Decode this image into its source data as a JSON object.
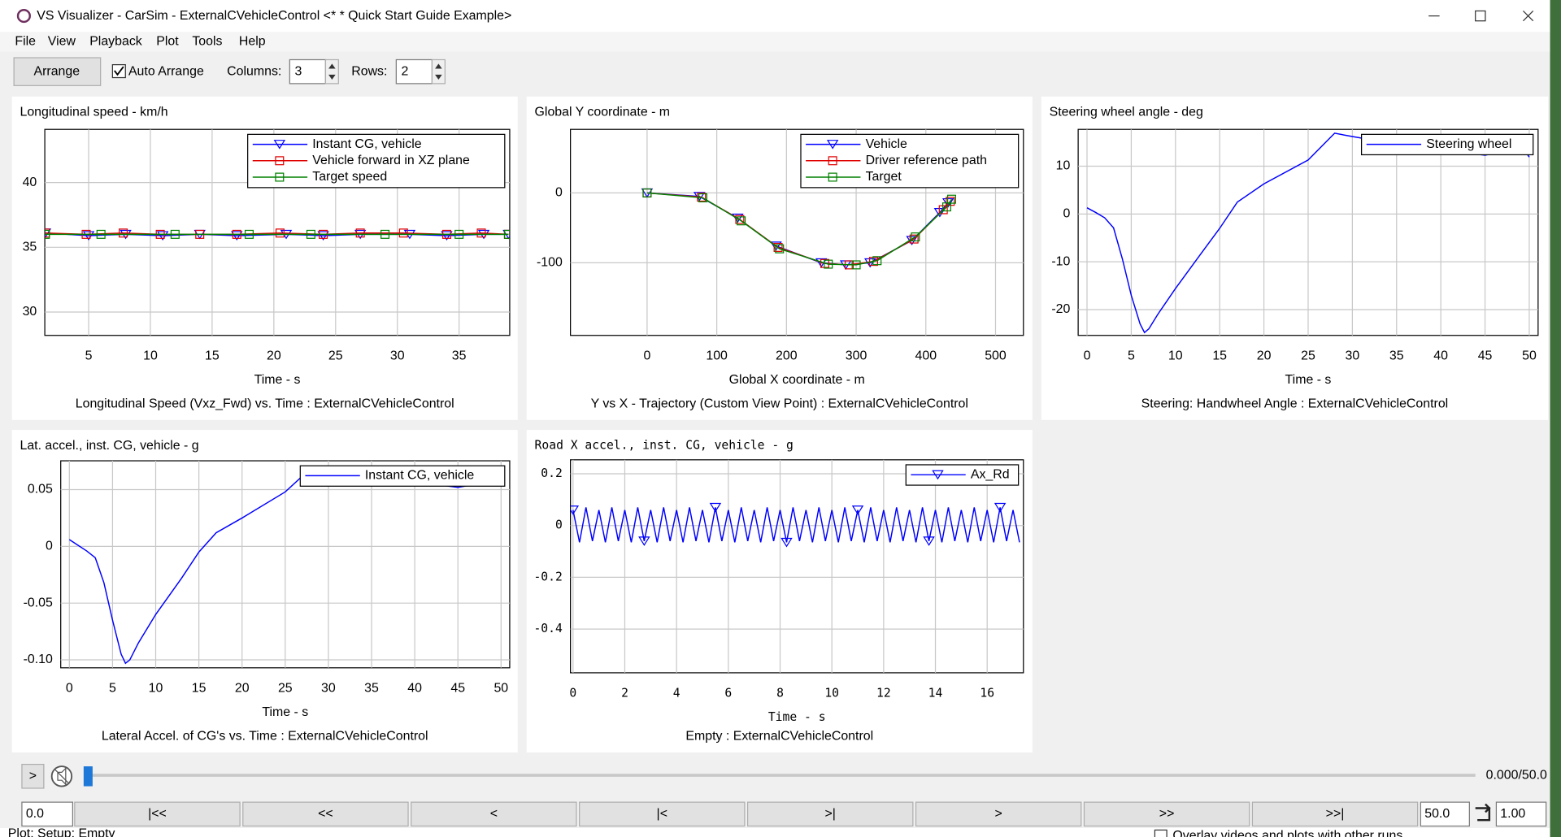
{
  "window": {
    "title": "VS Visualizer - CarSim - ExternalCVehicleControl <* * Quick Start Guide Example>"
  },
  "menu": [
    "File",
    "View",
    "Playback",
    "Plot",
    "Tools",
    "Help"
  ],
  "toolbar": {
    "arrange": "Arrange",
    "auto_arrange": "Auto Arrange",
    "columns_label": "Columns:",
    "columns": 3,
    "rows_label": "Rows:",
    "rows": 2
  },
  "plots": [
    {
      "title": "Longitudinal speed - km/h",
      "xlabel": "Time - s",
      "caption": "Longitudinal Speed (Vxz_Fwd) vs. Time : ExternalCVehicleControl",
      "xlim": [
        1.45,
        39.1
      ],
      "ylim": [
        28.2,
        44.1
      ],
      "xticks": [
        5,
        10,
        15,
        20,
        25,
        30,
        35
      ],
      "yticks": [
        30,
        35,
        40
      ],
      "grid": true,
      "legend": "upper right",
      "series": [
        {
          "name": "Instant CG, vehicle",
          "color": "#0000ff",
          "marker": "triangle",
          "x": [
            1.5,
            5,
            8,
            11,
            14,
            17,
            21,
            24,
            27,
            31,
            34,
            37,
            39
          ],
          "y": [
            36.1,
            35.9,
            36.0,
            35.9,
            36.0,
            35.9,
            36.0,
            35.9,
            36.0,
            36.0,
            35.9,
            36.0,
            36.0
          ]
        },
        {
          "name": "Vehicle forward in XZ plane",
          "color": "#e00000",
          "marker": "square",
          "x": [
            1.5,
            4.8,
            7.8,
            10.8,
            14,
            17,
            20.5,
            24,
            27,
            30.5,
            34,
            36.8,
            39
          ],
          "y": [
            36.1,
            36.0,
            36.1,
            36.0,
            36.0,
            36.0,
            36.1,
            36.0,
            36.1,
            36.1,
            36.0,
            36.1,
            36.0
          ]
        },
        {
          "name": "Target speed",
          "color": "#008000",
          "marker": "square",
          "x": [
            1.5,
            6,
            12,
            18,
            23,
            29,
            35,
            39
          ],
          "y": [
            36.0,
            36.0,
            36.0,
            36.0,
            36.0,
            36.0,
            36.0,
            36.0
          ]
        }
      ]
    },
    {
      "title": "Global Y coordinate - m",
      "xlabel": "Global X coordinate - m",
      "caption": "Y vs X - Trajectory (Custom View Point) : ExternalCVehicleControl",
      "xlim": [
        -110,
        540
      ],
      "ylim": [
        -204,
        91
      ],
      "xticks": [
        0,
        100,
        200,
        300,
        400,
        500
      ],
      "yticks": [
        -100,
        0
      ],
      "grid": true,
      "legend": "upper right",
      "series": [
        {
          "name": "Vehicle",
          "color": "#0000ff",
          "marker": "triangle",
          "x": [
            0,
            75,
            130,
            185,
            250,
            285,
            320,
            380,
            420,
            432
          ],
          "y": [
            0,
            -5,
            -36,
            -76,
            -100,
            -103,
            -100,
            -68,
            -28,
            -14
          ]
        },
        {
          "name": "Driver reference path",
          "color": "#e00000",
          "marker": "square",
          "x": [
            0,
            78,
            133,
            188,
            255,
            290,
            325,
            383,
            425,
            435
          ],
          "y": [
            0,
            -6,
            -38,
            -78,
            -101,
            -103,
            -98,
            -66,
            -24,
            -12
          ]
        },
        {
          "name": "Target",
          "color": "#008000",
          "marker": "square",
          "x": [
            0,
            80,
            135,
            190,
            260,
            300,
            330,
            385,
            430,
            437
          ],
          "y": [
            0,
            -7,
            -40,
            -80,
            -102,
            -103,
            -97,
            -63,
            -20,
            -9
          ]
        }
      ]
    },
    {
      "title": "Steering wheel angle - deg",
      "xlabel": "Time - s",
      "caption": "Steering: Handwheel Angle : ExternalCVehicleControl",
      "xlim": [
        -1,
        51
      ],
      "ylim": [
        -25.4,
        17.7
      ],
      "xticks": [
        0,
        5,
        10,
        15,
        20,
        25,
        30,
        35,
        40,
        45,
        50
      ],
      "yticks": [
        -20,
        -10,
        0,
        10
      ],
      "grid": true,
      "legend": "upper right",
      "series": [
        {
          "name": "Steering wheel",
          "color": "#0000ff",
          "marker": "none",
          "x": [
            0,
            1,
            2,
            3,
            4,
            5,
            6,
            6.5,
            7,
            8,
            10,
            13,
            15,
            17,
            20,
            25,
            28,
            30,
            35,
            40,
            45,
            48,
            49.5,
            50
          ],
          "y": [
            1.3,
            0.3,
            -0.8,
            -2.9,
            -9.4,
            -17,
            -23,
            -24.8,
            -24,
            -21,
            -15.6,
            -8,
            -3,
            2.5,
            6.3,
            11.3,
            16.9,
            16.2,
            14.6,
            13.5,
            12.3,
            13.5,
            13.2,
            11.9
          ]
        }
      ]
    },
    {
      "title": "Lat. accel., inst. CG, vehicle - g",
      "xlabel": "Time - s",
      "caption": "Lateral Accel. of CG's vs. Time : ExternalCVehicleControl",
      "xlim": [
        -1,
        51
      ],
      "ylim": [
        -0.107,
        0.0754
      ],
      "xticks": [
        0,
        5,
        10,
        15,
        20,
        25,
        30,
        35,
        40,
        45,
        50
      ],
      "yticks": [
        {
          "value": -0.1,
          "label": "-0.10"
        },
        -0.05,
        0,
        0.05
      ],
      "grid": true,
      "legend": "upper right",
      "series": [
        {
          "name": "Instant CG, vehicle",
          "color": "#0000ff",
          "marker": "none",
          "x": [
            0,
            1,
            2,
            3,
            4,
            5,
            6,
            6.5,
            7,
            8,
            10,
            13,
            15,
            17,
            20,
            25,
            28,
            30,
            35,
            40,
            45,
            48,
            50
          ],
          "y": [
            0.006,
            0.001,
            -0.004,
            -0.01,
            -0.032,
            -0.065,
            -0.095,
            -0.103,
            -0.1,
            -0.085,
            -0.06,
            -0.028,
            -0.005,
            0.012,
            0.025,
            0.048,
            0.069,
            0.068,
            0.062,
            0.057,
            0.052,
            0.056,
            0.059
          ]
        }
      ]
    },
    {
      "title": "Road X accel., inst. CG, vehicle - g",
      "xlabel": "Time - s",
      "caption": "Empty : ExternalCVehicleControl",
      "xlim": [
        -0.1,
        17.4
      ],
      "ylim": [
        -0.569,
        0.254
      ],
      "xticks": [
        0,
        2,
        4,
        6,
        8,
        10,
        12,
        14,
        16
      ],
      "yticks": [
        -0.4,
        -0.2,
        0,
        0.2
      ],
      "grid": true,
      "legend": "upper right",
      "series": [
        {
          "name": "Ax_Rd",
          "color": "#0000ff",
          "marker": "triangle",
          "x": [
            0,
            0.25,
            0.5,
            0.75,
            1,
            1.25,
            1.5,
            1.75,
            2,
            2.25,
            2.5,
            2.75,
            3,
            3.25,
            3.5,
            3.75,
            4,
            4.25,
            4.5,
            4.75,
            5,
            5.25,
            5.5,
            5.75,
            6,
            6.25,
            6.5,
            6.75,
            7,
            7.25,
            7.5,
            7.75,
            8,
            8.25,
            8.5,
            8.75,
            9,
            9.25,
            9.5,
            9.75,
            10,
            10.25,
            10.5,
            10.75,
            11,
            11.25,
            11.5,
            11.75,
            12,
            12.25,
            12.5,
            12.75,
            13,
            13.25,
            13.5,
            13.75,
            14,
            14.25,
            14.5,
            14.75,
            15,
            15.25,
            15.5,
            15.75,
            16,
            16.25,
            16.5,
            16.75,
            17,
            17.25
          ],
          "y": [
            0.06,
            -0.065,
            0.07,
            -0.06,
            0.06,
            -0.065,
            0.07,
            -0.06,
            0.06,
            -0.065,
            0.07,
            -0.06,
            0.06,
            -0.065,
            0.07,
            -0.06,
            0.06,
            -0.065,
            0.07,
            -0.06,
            0.06,
            -0.065,
            0.07,
            -0.06,
            0.06,
            -0.065,
            0.07,
            -0.06,
            0.06,
            -0.065,
            0.07,
            -0.06,
            0.06,
            -0.065,
            0.07,
            -0.06,
            0.06,
            -0.065,
            0.07,
            -0.06,
            0.06,
            -0.065,
            0.07,
            -0.06,
            0.06,
            -0.065,
            0.07,
            -0.06,
            0.06,
            -0.065,
            0.07,
            -0.06,
            0.06,
            -0.065,
            0.07,
            -0.06,
            0.06,
            -0.065,
            0.07,
            -0.06,
            0.06,
            -0.065,
            0.07,
            -0.06,
            0.06,
            -0.065,
            0.07,
            -0.06,
            0.06,
            -0.065
          ]
        }
      ]
    }
  ],
  "playback": {
    "play": ">",
    "time_display": "0.000/50.0",
    "start": "0.0",
    "buttons": [
      "|<<",
      "<<",
      "<",
      "|<",
      ">|",
      ">",
      ">>",
      ">>|"
    ],
    "end": "50.0",
    "speed": "1.00"
  },
  "background_window": {
    "status": "Plot: Setup: Empty",
    "overlay": "Overlay videos and plots with other runs"
  }
}
